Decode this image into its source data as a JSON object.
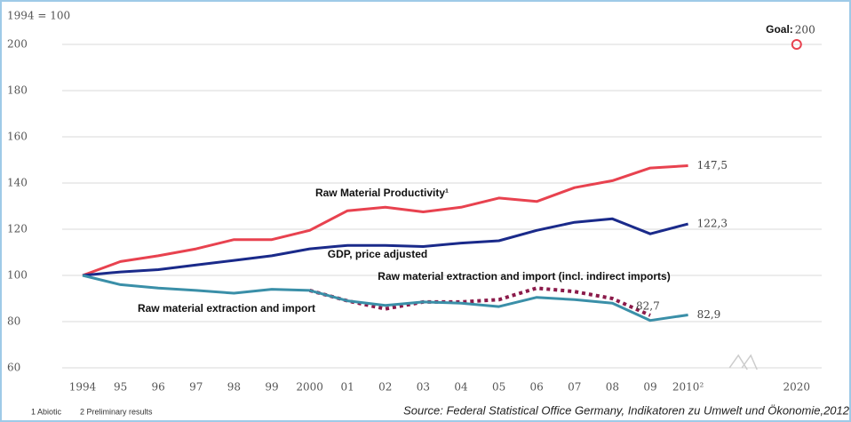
{
  "chart_data": {
    "type": "line",
    "y_axis_label": "1994 = 100",
    "x": [
      1994,
      1995,
      1996,
      1997,
      1998,
      1999,
      2000,
      2001,
      2002,
      2003,
      2004,
      2005,
      2006,
      2007,
      2008,
      2009,
      2010
    ],
    "series": [
      {
        "name": "Raw Material Productivity¹",
        "color": "#e8424f",
        "style": "solid",
        "values": [
          100,
          106,
          108.5,
          111.5,
          115.5,
          115.5,
          119.5,
          128,
          129.5,
          127.5,
          129.5,
          133.5,
          132,
          138,
          141,
          146.5,
          147.5
        ],
        "value_labels": [
          null,
          null,
          null,
          null,
          null,
          null,
          null,
          null,
          null,
          null,
          null,
          null,
          null,
          null,
          null,
          null,
          "147,5"
        ]
      },
      {
        "name": "GDP, price adjusted",
        "color": "#1a2a8a",
        "style": "solid",
        "values": [
          100,
          101.5,
          102.5,
          104.5,
          106.5,
          108.5,
          111.5,
          113,
          113,
          112.5,
          114,
          115,
          119.5,
          123,
          124.5,
          118,
          122.3
        ],
        "value_labels": [
          null,
          null,
          null,
          null,
          null,
          null,
          null,
          null,
          null,
          null,
          null,
          null,
          null,
          null,
          null,
          null,
          "122,3"
        ]
      },
      {
        "name": "Raw material extraction and import (incl. indirect imports)",
        "color": "#8b1a4a",
        "style": "dotted",
        "values": [
          null,
          null,
          null,
          null,
          null,
          null,
          93.5,
          89,
          85.5,
          88.5,
          88.5,
          89.5,
          94.5,
          93,
          90,
          82.7,
          null
        ],
        "value_labels": [
          null,
          null,
          null,
          null,
          null,
          null,
          null,
          null,
          null,
          null,
          null,
          null,
          null,
          null,
          null,
          "82,7",
          null
        ]
      },
      {
        "name": "Raw material extraction and import",
        "color": "#3a8fa8",
        "style": "solid",
        "values": [
          100,
          96,
          94.5,
          93.5,
          92.3,
          94,
          93.5,
          89,
          87,
          88.5,
          88,
          86.5,
          90.5,
          89.5,
          88,
          80.5,
          82.9
        ],
        "value_labels": [
          null,
          null,
          null,
          null,
          null,
          null,
          null,
          null,
          null,
          null,
          null,
          null,
          null,
          null,
          null,
          null,
          "82,9"
        ]
      }
    ],
    "goal": {
      "label": "Goal:",
      "x": 2020,
      "value": 200,
      "color": "#e8424f"
    },
    "xlim": [
      1993.5,
      2020.5
    ],
    "x_axis_break": [
      2011,
      2019
    ],
    "xticks": [
      1994,
      {
        "value": 1995,
        "label": "95"
      },
      {
        "value": 1996,
        "label": "96"
      },
      {
        "value": 1997,
        "label": "97"
      },
      {
        "value": 1998,
        "label": "98"
      },
      {
        "value": 1999,
        "label": "99"
      },
      2000,
      {
        "value": 2001,
        "label": "01"
      },
      {
        "value": 2002,
        "label": "02"
      },
      {
        "value": 2003,
        "label": "03"
      },
      {
        "value": 2004,
        "label": "04"
      },
      {
        "value": 2005,
        "label": "05"
      },
      {
        "value": 2006,
        "label": "06"
      },
      {
        "value": 2007,
        "label": "07"
      },
      {
        "value": 2008,
        "label": "08"
      },
      {
        "value": 2009,
        "label": "09"
      },
      {
        "value": 2010,
        "label": "2010²"
      },
      2020
    ],
    "ylim": [
      60,
      200
    ],
    "yticks": [
      60,
      80,
      100,
      120,
      140,
      160,
      180,
      200
    ],
    "grid": true,
    "footnotes": [
      "1 Abiotic",
      "2 Preliminary results"
    ],
    "source": "Source: Federal Statistical Office Germany, Indikatoren zu Umwelt und Ökonomie,2012"
  }
}
